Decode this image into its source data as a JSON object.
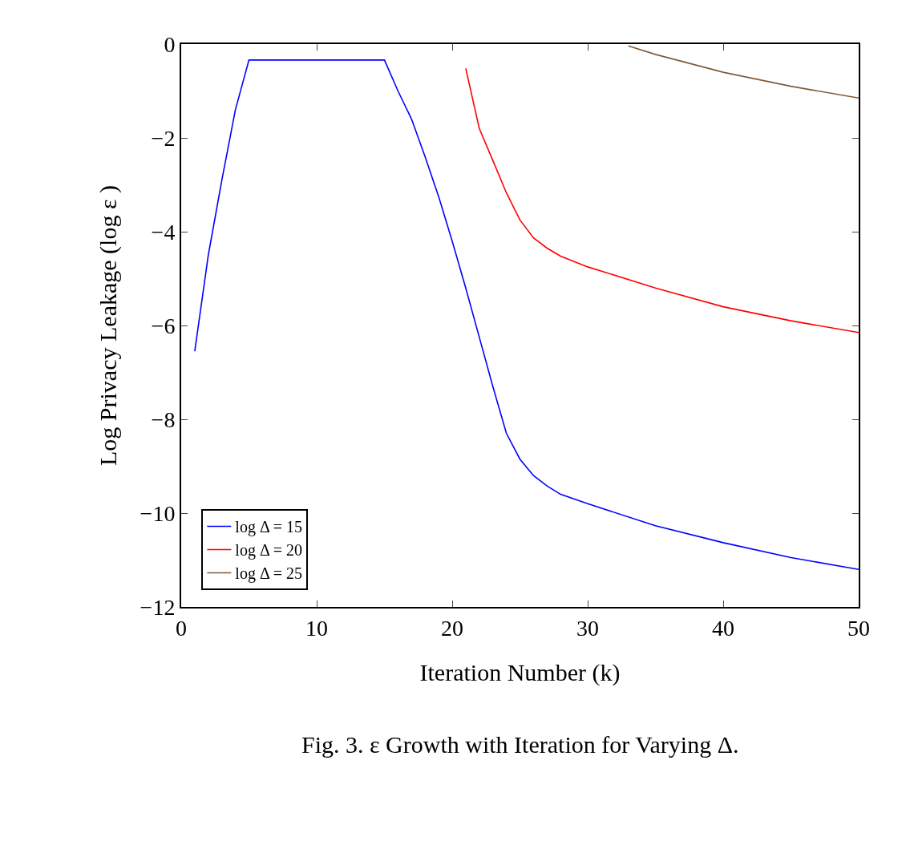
{
  "chart_data": {
    "type": "line",
    "xlabel": "Iteration Number (k)",
    "ylabel": "Log Privacy Leakage (log ε )",
    "annotations": [
      "Fig. 3. ε Growth with Iteration for Varying Δ."
    ],
    "xlim": [
      0,
      50
    ],
    "ylim": [
      -12,
      0
    ],
    "xticks": [
      0,
      10,
      20,
      30,
      40,
      50
    ],
    "yticks": [
      -12,
      -10,
      -8,
      -6,
      -4,
      -2,
      0
    ],
    "legend": "bottom left",
    "line_style": "solid",
    "marker": "none",
    "series": [
      {
        "name": "log Δ = 15",
        "color": "#0000ff",
        "x": [
          1,
          2,
          3,
          4,
          5,
          15,
          16,
          17,
          18,
          19,
          20,
          21,
          22,
          23,
          24,
          25,
          26,
          27,
          28,
          30,
          35,
          40,
          45,
          50
        ],
        "values": [
          -6.55,
          -4.5,
          -2.9,
          -1.4,
          -0.34,
          -0.34,
          -1.0,
          -1.6,
          -2.4,
          -3.25,
          -4.2,
          -5.2,
          -6.25,
          -7.3,
          -8.3,
          -8.85,
          -9.2,
          -9.42,
          -9.6,
          -9.8,
          -10.27,
          -10.63,
          -10.95,
          -11.2
        ]
      },
      {
        "name": "log Δ = 20",
        "color": "#ff0000",
        "x": [
          21,
          22,
          23,
          24,
          25,
          26,
          27,
          28,
          30,
          35,
          40,
          45,
          50
        ],
        "values": [
          -0.52,
          -1.8,
          -2.48,
          -3.17,
          -3.75,
          -4.13,
          -4.35,
          -4.52,
          -4.75,
          -5.2,
          -5.6,
          -5.9,
          -6.15
        ]
      },
      {
        "name": "log Δ = 25",
        "color": "#7f5a3a",
        "x": [
          33,
          35,
          40,
          45,
          50
        ],
        "values": [
          -0.04,
          -0.22,
          -0.6,
          -0.9,
          -1.15
        ]
      }
    ]
  }
}
